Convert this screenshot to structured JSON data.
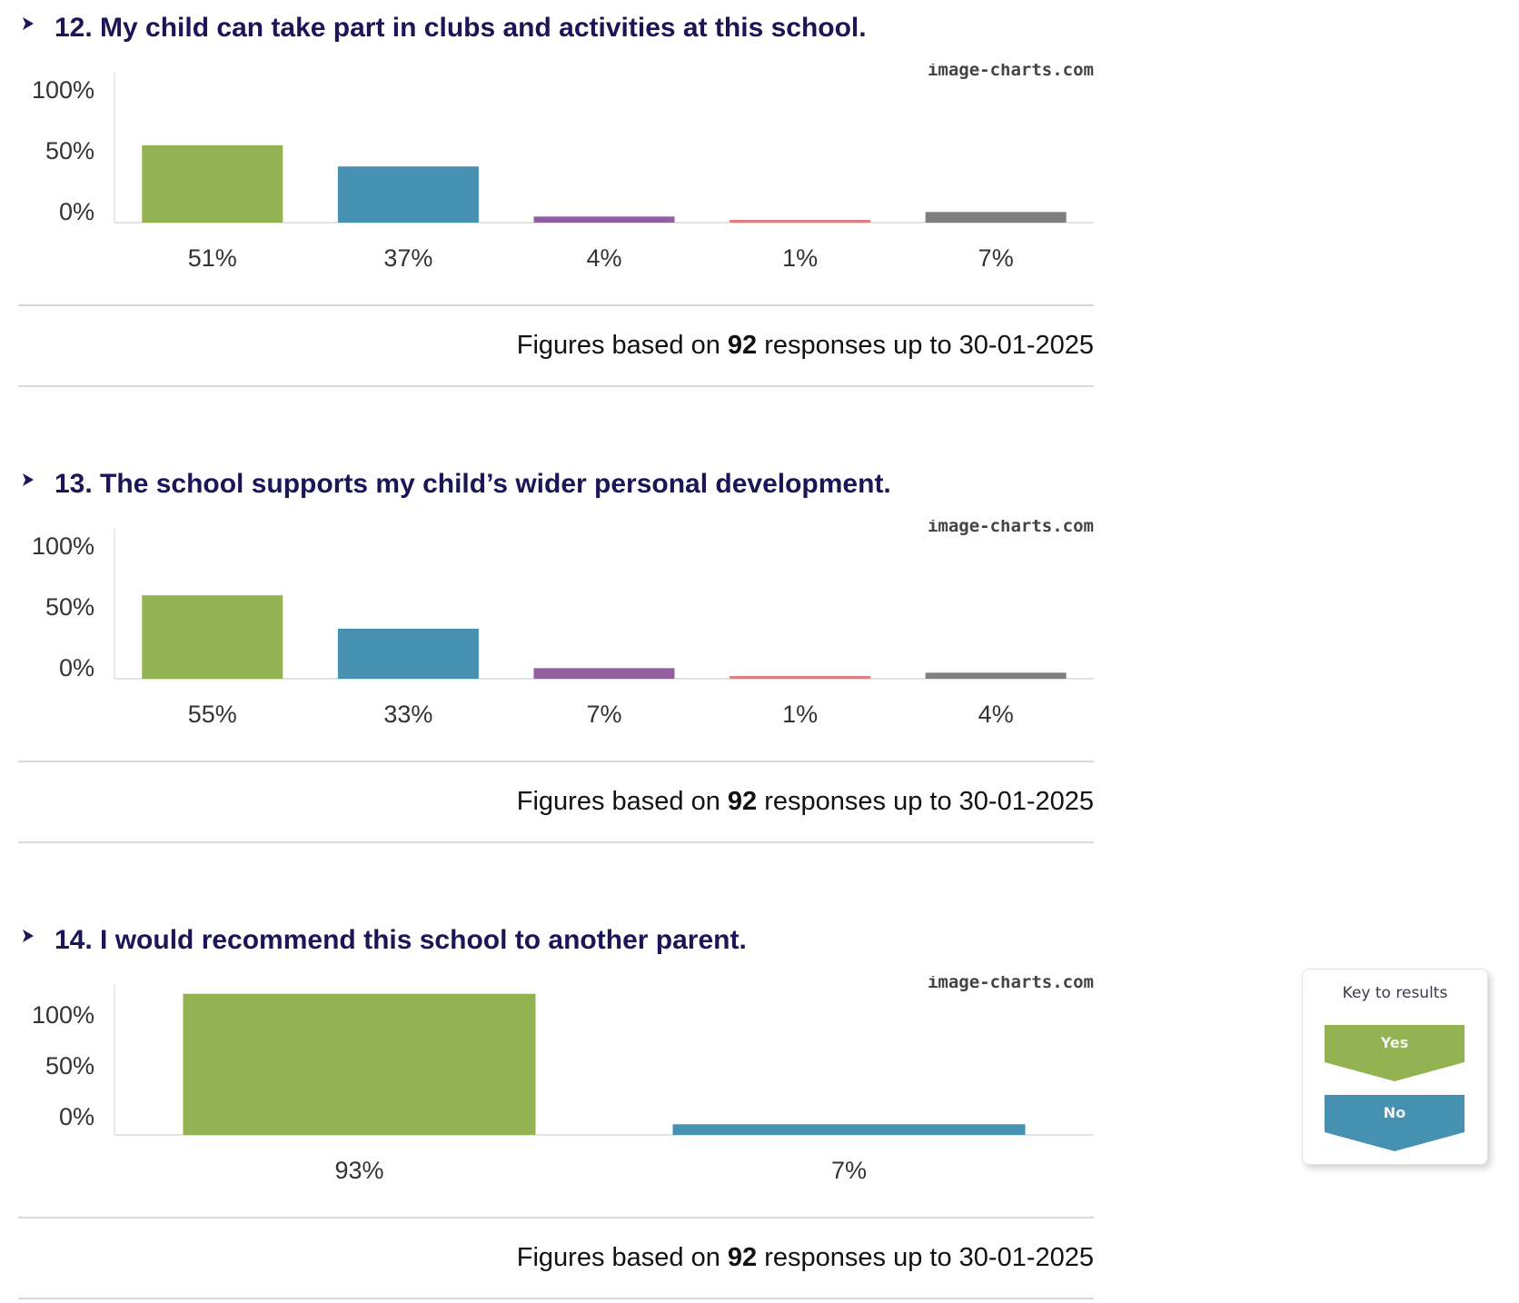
{
  "colors": {
    "question_title": "#1c1557",
    "yes": "#93b251",
    "no": "#4690b2",
    "purple": "#9160a0",
    "red": "#df7e7e",
    "grey": "#7f7f7f",
    "axis": "#e3e3e3"
  },
  "icons": {
    "question_chevron": "chevron-right-icon"
  },
  "questions": [
    {
      "title": "12. My child can take part in clubs and activities at this school.",
      "watermark": "image-charts.com",
      "figures": {
        "prefix": "Figures based on ",
        "count": "92",
        "suffix": " responses up to 30-01-2025"
      }
    },
    {
      "title": "13. The school supports my child’s wider personal development.",
      "watermark": "image-charts.com",
      "figures": {
        "prefix": "Figures based on ",
        "count": "92",
        "suffix": " responses up to 30-01-2025"
      }
    },
    {
      "title": "14. I would recommend this school to another parent.",
      "watermark": "image-charts.com",
      "figures": {
        "prefix": "Figures based on ",
        "count": "92",
        "suffix": " responses up to 30-01-2025"
      }
    }
  ],
  "key": {
    "title": "Key to results",
    "items": [
      {
        "label": "Yes",
        "color": "#93b251"
      },
      {
        "label": "No",
        "color": "#4690b2"
      }
    ]
  },
  "chart_data": [
    {
      "type": "bar",
      "title": "12. My child can take part in clubs and activities at this school.",
      "categories": [
        "51%",
        "37%",
        "4%",
        "1%",
        "7%"
      ],
      "values": [
        51,
        37,
        4,
        1,
        7
      ],
      "colors": [
        "#93b251",
        "#4690b2",
        "#9160a0",
        "#df7e7e",
        "#7f7f7f"
      ],
      "yticks": [
        "100%",
        "50%",
        "0%"
      ],
      "ylim": [
        0,
        100
      ],
      "xlabel": "",
      "ylabel": "",
      "grid": false,
      "legend": "none"
    },
    {
      "type": "bar",
      "title": "13. The school supports my child’s wider personal development.",
      "categories": [
        "55%",
        "33%",
        "7%",
        "1%",
        "4%"
      ],
      "values": [
        55,
        33,
        7,
        1,
        4
      ],
      "colors": [
        "#93b251",
        "#4690b2",
        "#9160a0",
        "#df7e7e",
        "#7f7f7f"
      ],
      "yticks": [
        "100%",
        "50%",
        "0%"
      ],
      "ylim": [
        0,
        100
      ],
      "xlabel": "",
      "ylabel": "",
      "grid": false,
      "legend": "none"
    },
    {
      "type": "bar",
      "title": "14. I would recommend this school to another parent.",
      "categories": [
        "93%",
        "7%"
      ],
      "values": [
        93,
        7
      ],
      "colors": [
        "#93b251",
        "#4690b2"
      ],
      "yticks": [
        "100%",
        "50%",
        "0%"
      ],
      "ylim": [
        0,
        100
      ],
      "xlabel": "",
      "ylabel": "",
      "grid": false,
      "legend": "none"
    }
  ]
}
